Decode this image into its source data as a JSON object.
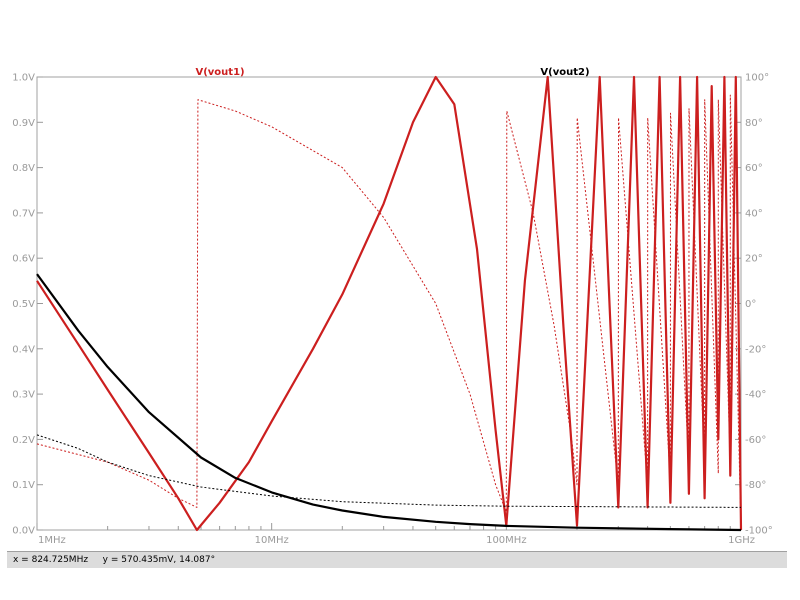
{
  "status": {
    "x_readout": "x = 824.725MHz",
    "y_readout": "y = 570.435mV, 14.087°"
  },
  "chart_data": {
    "type": "line",
    "title": "",
    "xlabel": "",
    "ylabel": "",
    "x_scale": "log",
    "xlim_hz": [
      1000000,
      1000000000
    ],
    "ylim_left_v": [
      0,
      1
    ],
    "ylim_right_deg": [
      -100,
      100
    ],
    "grid": false,
    "x_ticks": [
      "1MHz",
      "10MHz",
      "100MHz",
      "1GHz"
    ],
    "y_ticks_left": [
      "0.0V",
      "0.1V",
      "0.2V",
      "0.3V",
      "0.4V",
      "0.5V",
      "0.6V",
      "0.7V",
      "0.8V",
      "0.9V",
      "1.0V"
    ],
    "y_ticks_right": [
      "-100°",
      "-80°",
      "-60°",
      "-40°",
      "-20°",
      "0°",
      "20°",
      "40°",
      "60°",
      "80°",
      "100°"
    ],
    "colors": {
      "vout1": "#cc1f1f",
      "vout2": "#000000",
      "ticks": "#9a9a9a",
      "axes": "#a0a0a0"
    },
    "series": [
      {
        "name": "V(vout1)",
        "label_position": "top-left",
        "magnitude_v": {
          "x_hz": [
            1000000,
            1500000,
            2000000,
            3000000,
            4000000,
            4800000,
            6000000,
            8000000,
            10000000,
            15000000,
            20000000,
            30000000,
            40000000,
            50000000,
            60000000,
            75000000,
            90000000,
            100000000,
            120000000,
            150000000,
            175000000,
            200000000,
            250000000,
            300000000,
            350000000,
            400000000,
            450000000,
            500000000,
            550000000,
            600000000,
            650000000,
            700000000,
            750000000,
            800000000,
            850000000,
            900000000,
            950000000,
            1000000000
          ],
          "y_v": [
            0.55,
            0.41,
            0.31,
            0.17,
            0.07,
            0.0,
            0.06,
            0.15,
            0.24,
            0.4,
            0.52,
            0.72,
            0.9,
            1.0,
            0.94,
            0.62,
            0.22,
            0.01,
            0.55,
            1.0,
            0.45,
            0.01,
            1.0,
            0.05,
            1.0,
            0.05,
            1.0,
            0.06,
            1.0,
            0.08,
            1.0,
            0.07,
            0.98,
            0.2,
            1.0,
            0.12,
            1.0,
            0.0
          ]
        },
        "phase_deg": {
          "x_hz": [
            1000000,
            2000000,
            3000000,
            4000000,
            4800000,
            4850000,
            7000000,
            10000000,
            20000000,
            30000000,
            50000000,
            70000000,
            90000000,
            100000000,
            100500000,
            130000000,
            160000000,
            190000000,
            200000000,
            200500000,
            300000000,
            300500000,
            400000000,
            400500000,
            500000000,
            500500000,
            600000000,
            600500000,
            700000000,
            700500000,
            800000000,
            800500000,
            900000000,
            900500000,
            1000000000
          ],
          "y_deg": [
            -62,
            -70,
            -78,
            -86,
            -90,
            90,
            85,
            78,
            60,
            38,
            0,
            -40,
            -80,
            -92,
            85,
            40,
            -10,
            -60,
            -80,
            82,
            -80,
            82,
            -80,
            82,
            -78,
            84,
            -72,
            86,
            -70,
            90,
            -75,
            90,
            -70,
            92,
            -100
          ]
        }
      },
      {
        "name": "V(vout2)",
        "label_position": "top-right",
        "magnitude_v": {
          "x_hz": [
            1000000,
            1500000,
            2000000,
            3000000,
            5000000,
            7000000,
            10000000,
            15000000,
            20000000,
            30000000,
            50000000,
            70000000,
            100000000,
            200000000,
            500000000,
            1000000000
          ],
          "y_v": [
            0.565,
            0.44,
            0.36,
            0.26,
            0.16,
            0.115,
            0.083,
            0.056,
            0.043,
            0.029,
            0.018,
            0.013,
            0.009,
            0.005,
            0.002,
            0.0
          ]
        },
        "phase_deg": {
          "x_hz": [
            1000000,
            1500000,
            2000000,
            3000000,
            5000000,
            10000000,
            20000000,
            50000000,
            100000000,
            1000000000
          ],
          "y_deg": [
            -58,
            -64,
            -70,
            -76,
            -81,
            -85,
            -87.5,
            -89,
            -89.5,
            -90
          ]
        }
      }
    ]
  }
}
